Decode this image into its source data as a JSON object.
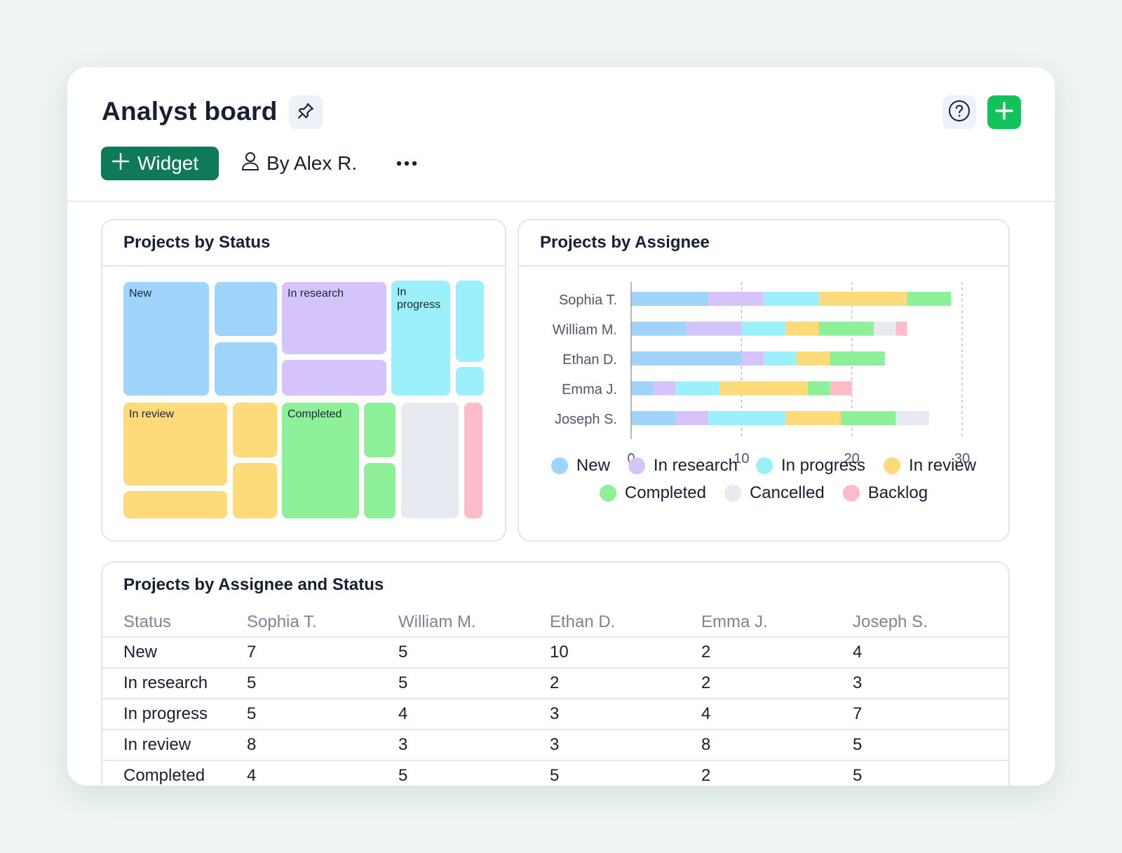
{
  "header": {
    "title": "Analyst board",
    "widget_label": "Widget",
    "byline": "By Alex R.",
    "icons": {
      "pin": "pin-icon",
      "help": "help-circle-icon",
      "add": "plus-icon",
      "user": "user-icon",
      "more": "more-horizontal-icon"
    },
    "accent": "#12c25a",
    "widget_color": "#0e7a5a"
  },
  "status_colors": {
    "New": "#9fd4fd",
    "In research": "#d4c4fb",
    "In progress": "#9cf0fb",
    "In review": "#fedb7a",
    "Completed": "#8ef098",
    "Cancelled": "#e8eaf1",
    "Backlog": "#fdbcc7"
  },
  "treemap": {
    "title": "Projects by Status",
    "labels": {
      "new": "New",
      "research": "In research",
      "progress": "In progress",
      "review": "In review",
      "completed": "Completed"
    }
  },
  "chart_data": {
    "type": "bar",
    "orientation": "horizontal",
    "stacked": true,
    "title": "Projects by Assignee",
    "categories": [
      "Sophia T.",
      "William M.",
      "Ethan D.",
      "Emma J.",
      "Joseph S."
    ],
    "series": [
      {
        "name": "New",
        "values": [
          7,
          5,
          10,
          2,
          4
        ]
      },
      {
        "name": "In research",
        "values": [
          5,
          5,
          2,
          2,
          3
        ]
      },
      {
        "name": "In progress",
        "values": [
          5,
          4,
          3,
          4,
          7
        ]
      },
      {
        "name": "In review",
        "values": [
          8,
          3,
          3,
          8,
          5
        ]
      },
      {
        "name": "Completed",
        "values": [
          4,
          5,
          5,
          2,
          5
        ]
      },
      {
        "name": "Cancelled",
        "values": [
          0,
          2,
          0,
          0,
          3
        ]
      },
      {
        "name": "Backlog",
        "values": [
          0,
          1,
          0,
          2,
          0
        ]
      }
    ],
    "xlim": [
      0,
      30
    ],
    "xticks": [
      0,
      10,
      20,
      30
    ],
    "grid": "vertical dashed",
    "legend": "bottom"
  },
  "table": {
    "title": "Projects by Assignee and Status",
    "columns": [
      "Status",
      "Sophia T.",
      "William M.",
      "Ethan D.",
      "Emma J.",
      "Joseph S."
    ],
    "rows": [
      [
        "New",
        "7",
        "5",
        "10",
        "2",
        "4"
      ],
      [
        "In research",
        "5",
        "5",
        "2",
        "2",
        "3"
      ],
      [
        "In progress",
        "5",
        "4",
        "3",
        "4",
        "7"
      ],
      [
        "In review",
        "8",
        "3",
        "3",
        "8",
        "5"
      ],
      [
        "Completed",
        "4",
        "5",
        "5",
        "2",
        "5"
      ]
    ]
  }
}
